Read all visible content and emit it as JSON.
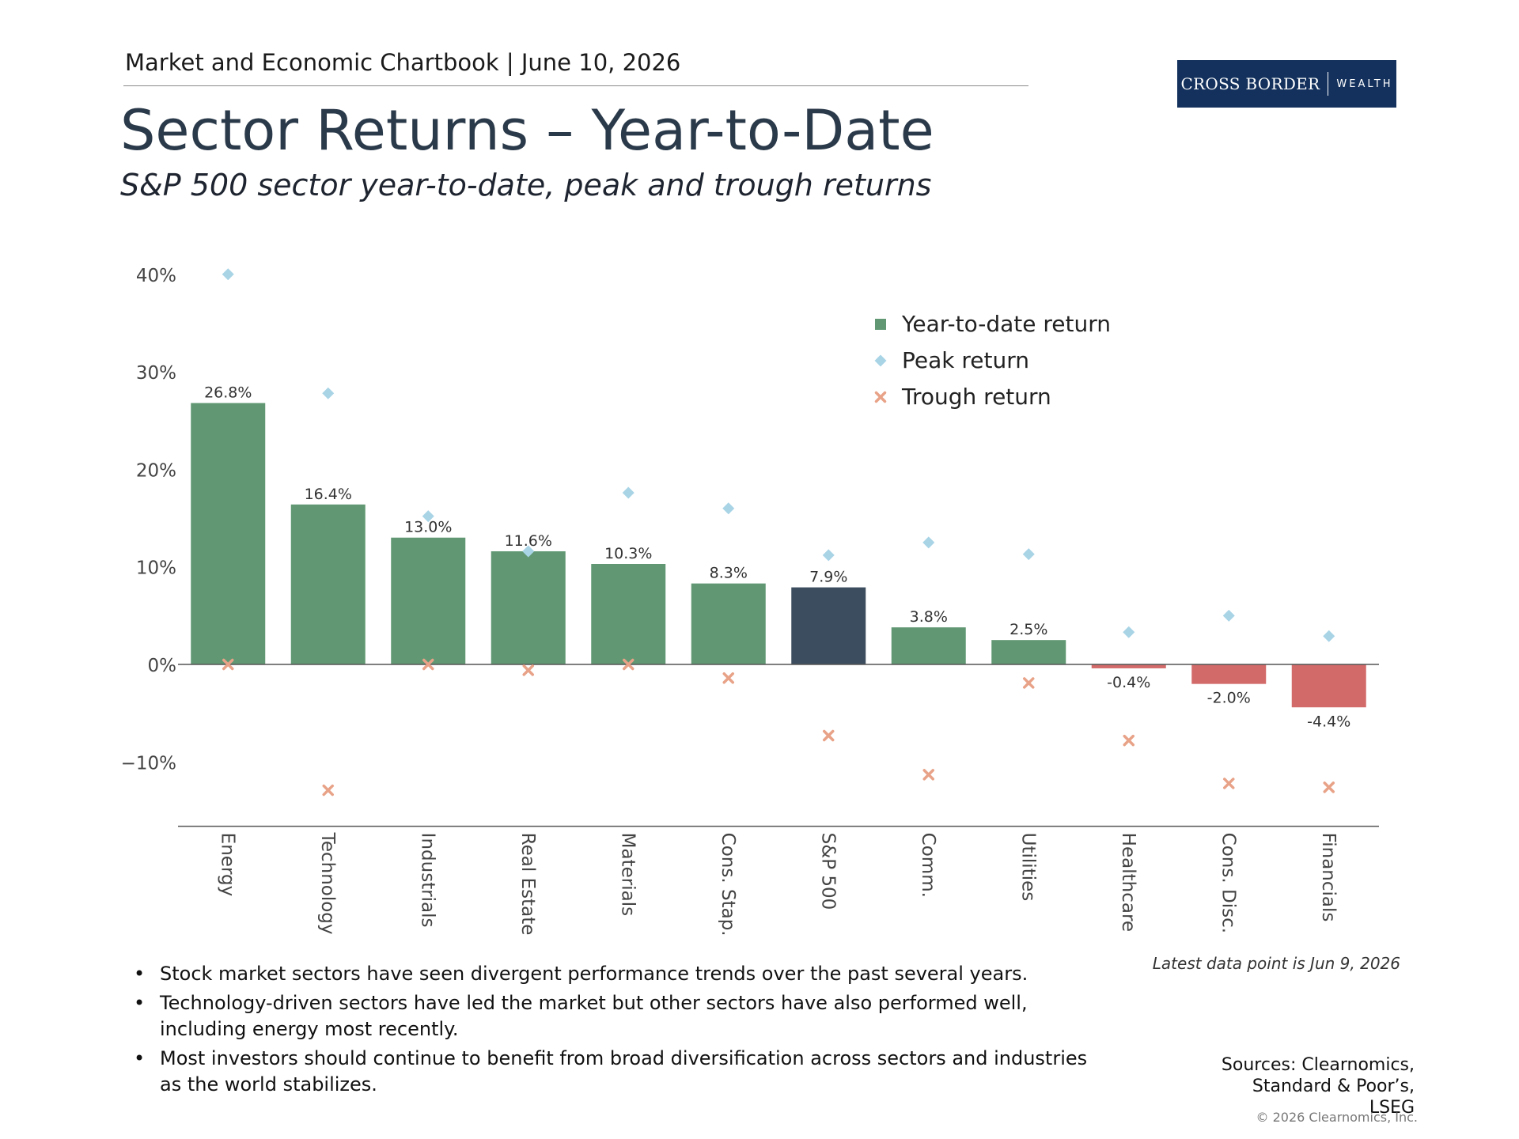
{
  "header": {
    "chartbook": "Market and Economic Chartbook | June 10, 2026",
    "title": "Sector Returns – Year-to-Date",
    "subtitle": "S&P 500 sector year-to-date, peak and trough returns"
  },
  "logo": {
    "primary": "CROSS BORDER",
    "secondary": "WEALTH",
    "bg_color": "#13315c"
  },
  "chart_data": {
    "type": "bar",
    "categories": [
      "Energy",
      "Technology",
      "Industrials",
      "Real Estate",
      "Materials",
      "Cons. Stap.",
      "S&P 500",
      "Comm.",
      "Utilities",
      "Healthcare",
      "Cons. Disc.",
      "Financials"
    ],
    "series": [
      {
        "name": "Year-to-date return",
        "marker": "square",
        "values": [
          26.8,
          16.4,
          13.0,
          11.6,
          10.3,
          8.3,
          7.9,
          3.8,
          2.5,
          -0.4,
          -2.0,
          -4.4
        ]
      },
      {
        "name": "Peak return",
        "marker": "diamond",
        "values": [
          40.0,
          27.8,
          15.2,
          11.6,
          17.6,
          16.0,
          11.2,
          12.5,
          11.3,
          3.3,
          5.0,
          2.9
        ]
      },
      {
        "name": "Trough return",
        "marker": "x",
        "values": [
          0.0,
          -12.9,
          0.0,
          -0.6,
          0.0,
          -1.4,
          -7.3,
          -11.3,
          -1.9,
          -7.8,
          -12.2,
          -12.6
        ]
      }
    ],
    "data_labels": [
      "26.8%",
      "16.4%",
      "13.0%",
      "11.6%",
      "10.3%",
      "8.3%",
      "7.9%",
      "3.8%",
      "2.5%",
      "-0.4%",
      "-2.0%",
      "-4.4%"
    ],
    "y_ticks": [
      40,
      30,
      20,
      10,
      0,
      -10
    ],
    "y_tick_labels": [
      "40%",
      "30%",
      "20%",
      "10%",
      "0%",
      "−10%"
    ],
    "ylim": [
      -16.6,
      42
    ],
    "grid": false,
    "legend": "top-right",
    "colors": {
      "positive_bar": "#619873",
      "negative_bar": "#d36a6a",
      "benchmark_bar": "#3b4d5e",
      "peak_marker": "#a8d4e6",
      "trough_marker": "#e8a287"
    }
  },
  "notes": {
    "bullets": [
      "Stock market sectors have seen divergent performance trends over the past several years.",
      "Technology-driven sectors have led the market but other sectors have also performed well, including energy most recently.",
      "Most investors should continue to benefit from broad diversification across sectors and industries as the world stabilizes."
    ],
    "latest": "Latest data point is Jun 9, 2026",
    "sources": "Sources: Clearnomics, Standard & Poor’s, LSEG",
    "copyright": "© 2026 Clearnomics, Inc."
  }
}
